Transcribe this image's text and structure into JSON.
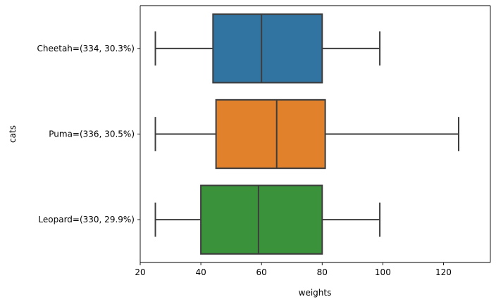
{
  "chart_data": {
    "type": "box",
    "orientation": "horizontal",
    "xlabel": "weights",
    "ylabel": "cats",
    "xlim": [
      20,
      130
    ],
    "xticks": [
      20,
      40,
      60,
      80,
      100,
      120
    ],
    "grid": false,
    "categories": [
      "Cheetah=(334, 30.3%)",
      "Puma=(336, 30.5%)",
      "Leopard=(330, 29.9%)"
    ],
    "boxes": [
      {
        "min": 25,
        "q1": 44,
        "median": 60,
        "q3": 80,
        "max": 99,
        "color": "#3274a1"
      },
      {
        "min": 25,
        "q1": 45,
        "median": 65,
        "q3": 81,
        "max": 125,
        "color": "#e1812c"
      },
      {
        "min": 25,
        "q1": 40,
        "median": 59,
        "q3": 80,
        "max": 99,
        "color": "#3a923a"
      }
    ],
    "line_color": "#3d3d3d"
  }
}
